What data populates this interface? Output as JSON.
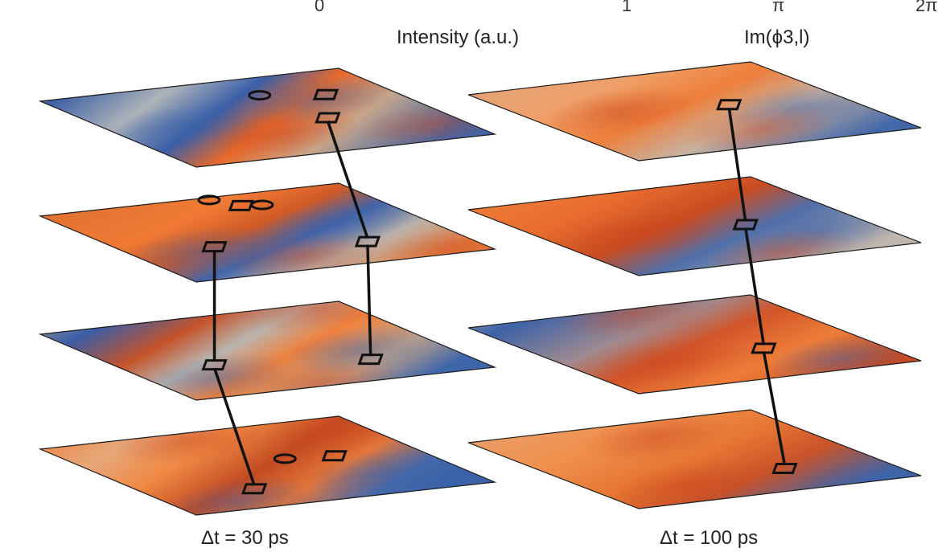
{
  "colorbar": {
    "intensity_ticks": [
      "0",
      "1"
    ],
    "phase_ticks": [
      "π",
      "2π"
    ],
    "intensity_label": "Intensity (a.u.)",
    "phase_label": "Im(ϕ3,l)"
  },
  "panels": [
    {
      "label": "Δt = 30 ps",
      "layers": [
        {
          "defects": [
            {
              "shape": "circle",
              "u": 0.62,
              "v": 0.22
            },
            {
              "shape": "square",
              "u": 0.8,
              "v": 0.3
            },
            {
              "shape": "square",
              "u": 0.66,
              "v": 0.58
            }
          ]
        },
        {
          "defects": [
            {
              "shape": "circle",
              "u": 0.55,
              "v": 0.03
            },
            {
              "shape": "square",
              "u": 0.6,
              "v": 0.14
            },
            {
              "shape": "circle",
              "u": 0.66,
              "v": 0.16
            },
            {
              "shape": "square",
              "u": 0.27,
              "v": 0.6
            },
            {
              "shape": "square",
              "u": 0.71,
              "v": 0.74
            }
          ]
        },
        {
          "defects": [
            {
              "shape": "square",
              "u": 0.27,
              "v": 0.6
            },
            {
              "shape": "square",
              "u": 0.72,
              "v": 0.74
            }
          ]
        },
        {
          "defects": [
            {
              "shape": "circle",
              "u": 0.59,
              "v": 0.44
            },
            {
              "shape": "square",
              "u": 0.74,
              "v": 0.47
            },
            {
              "shape": "square",
              "u": 0.32,
              "v": 0.76
            }
          ]
        }
      ]
    },
    {
      "label": "Δt = 100 ps",
      "layers": [
        {
          "defects": [
            {
              "shape": "square",
              "u": 0.64,
              "v": 0.47
            }
          ]
        },
        {
          "defects": [
            {
              "shape": "square",
              "u": 0.65,
              "v": 0.55
            }
          ]
        },
        {
          "defects": [
            {
              "shape": "square",
              "u": 0.66,
              "v": 0.64
            }
          ]
        },
        {
          "defects": [
            {
              "shape": "square",
              "u": 0.68,
              "v": 0.73
            }
          ]
        }
      ]
    }
  ]
}
